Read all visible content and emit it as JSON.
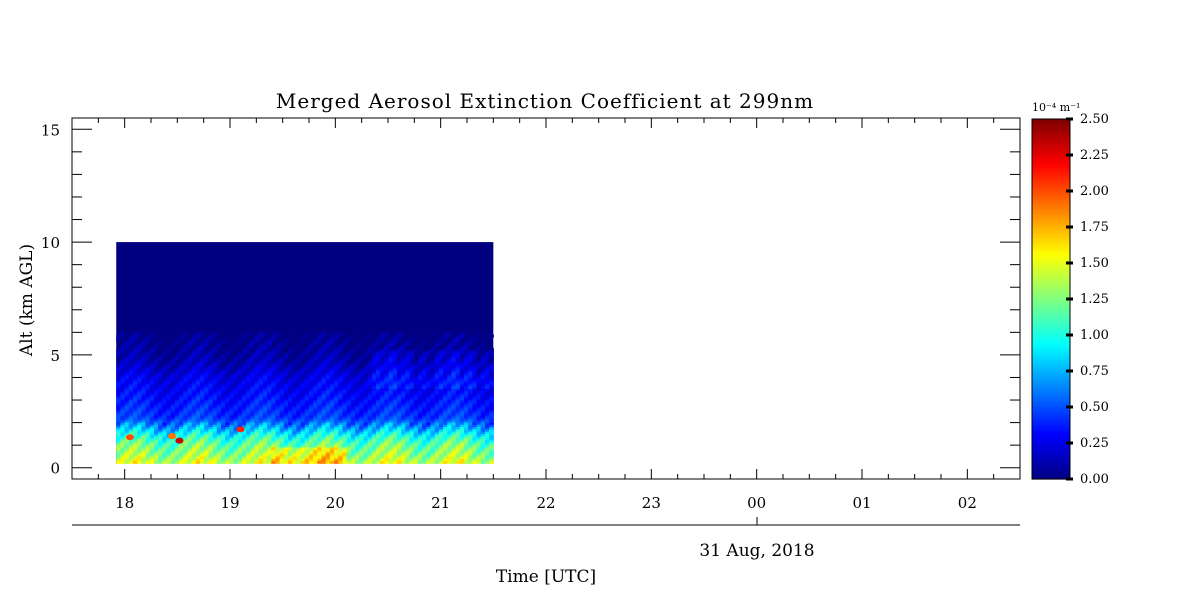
{
  "chart_data": {
    "type": "heatmap",
    "title": "Merged Aerosol Extinction Coefficient at 299nm",
    "xlabel": "Time [UTC]",
    "ylabel": "Alt (km AGL)",
    "date_label": "31 Aug, 2018",
    "x_ticks": [
      "18",
      "19",
      "20",
      "21",
      "22",
      "23",
      "00",
      "01",
      "02"
    ],
    "y_ticks": [
      "0",
      "5",
      "10",
      "15"
    ],
    "xlim": [
      17.5,
      26.5
    ],
    "ylim": [
      -0.5,
      15.5
    ],
    "data_extent": {
      "x": [
        17.92,
        21.5
      ],
      "y": [
        0.2,
        10
      ]
    },
    "colorbar": {
      "label": "10⁻⁴ m⁻¹",
      "min": 0.0,
      "max": 2.5,
      "ticks": [
        "0.00",
        "0.25",
        "0.50",
        "0.75",
        "1.00",
        "1.25",
        "1.50",
        "1.75",
        "2.00",
        "2.25",
        "2.50"
      ]
    },
    "altitude_profile": [
      {
        "alt": 0.2,
        "value": 1.45
      },
      {
        "alt": 0.6,
        "value": 1.3
      },
      {
        "alt": 1.0,
        "value": 1.2
      },
      {
        "alt": 1.4,
        "value": 1.0
      },
      {
        "alt": 1.8,
        "value": 0.7
      },
      {
        "alt": 2.2,
        "value": 0.45
      },
      {
        "alt": 2.6,
        "value": 0.4
      },
      {
        "alt": 3.0,
        "value": 0.35
      },
      {
        "alt": 3.5,
        "value": 0.3
      },
      {
        "alt": 4.0,
        "value": 0.25
      },
      {
        "alt": 4.5,
        "value": 0.15
      },
      {
        "alt": 5.0,
        "value": 0.08
      },
      {
        "alt": 6.0,
        "value": 0.0
      },
      {
        "alt": 10.0,
        "value": 0.0
      }
    ],
    "hotspots": [
      {
        "time": 18.52,
        "alt": 1.2,
        "value": 2.3
      },
      {
        "time": 19.1,
        "alt": 1.7,
        "value": 2.1
      },
      {
        "time": 18.05,
        "alt": 1.35,
        "value": 2.0
      },
      {
        "time": 18.45,
        "alt": 1.4,
        "value": 1.9
      }
    ]
  }
}
